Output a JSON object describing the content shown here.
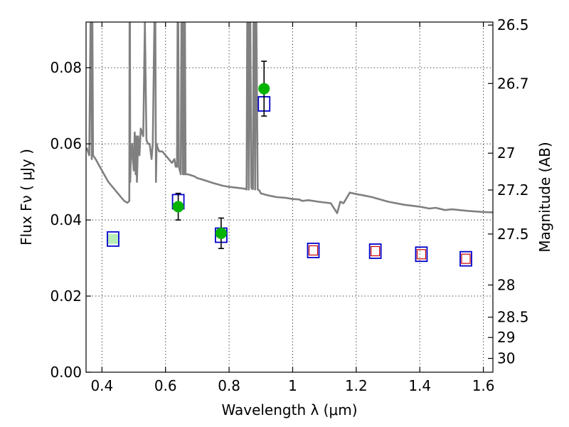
{
  "chart_data": {
    "type": "scatter",
    "title": "",
    "xlabel": "Wavelength  λ (μm)",
    "ylabel": "Flux  Fν  ( μJy )",
    "ylabel_right": "Magnitude (AB)",
    "xlim": [
      0.35,
      1.63
    ],
    "ylim": [
      0.0,
      0.092
    ],
    "grid": true,
    "x_ticks": [
      {
        "value": 0.4,
        "label": "0.4"
      },
      {
        "value": 0.6,
        "label": "0.6"
      },
      {
        "value": 0.8,
        "label": "0.8"
      },
      {
        "value": 1.0,
        "label": "1"
      },
      {
        "value": 1.2,
        "label": "1.2"
      },
      {
        "value": 1.4,
        "label": "1.4"
      },
      {
        "value": 1.6,
        "label": "1.6"
      }
    ],
    "y_ticks": [
      {
        "value": 0.0,
        "label": "0.00"
      },
      {
        "value": 0.02,
        "label": "0.02"
      },
      {
        "value": 0.04,
        "label": "0.04"
      },
      {
        "value": 0.06,
        "label": "0.06"
      },
      {
        "value": 0.08,
        "label": "0.08"
      }
    ],
    "mag_ticks": [
      {
        "value": 26.5,
        "label": "26.5"
      },
      {
        "value": 26.7,
        "label": "26.7"
      },
      {
        "value": 27.0,
        "label": "27"
      },
      {
        "value": 27.2,
        "label": "27.2"
      },
      {
        "value": 27.5,
        "label": "27.5"
      },
      {
        "value": 28.0,
        "label": "28"
      },
      {
        "value": 28.5,
        "label": "28.5"
      },
      {
        "value": 29.0,
        "label": "29"
      },
      {
        "value": 30.0,
        "label": "30"
      }
    ],
    "colors": {
      "sed": "#808080",
      "model_box": "#0000cc",
      "model_fill": "#33cc33",
      "pred_box": "#cc0000",
      "obs": "#00b300",
      "err": "#000000"
    },
    "series": [
      {
        "kind": "line",
        "x": [
          0.352,
          0.36,
          0.364,
          0.366,
          0.368,
          0.369,
          0.37,
          0.372,
          0.38,
          0.4,
          0.42,
          0.45,
          0.47,
          0.48,
          0.486,
          0.487,
          0.488,
          0.489,
          0.49,
          0.495,
          0.5,
          0.503,
          0.506,
          0.508,
          0.51,
          0.514,
          0.518,
          0.522,
          0.526,
          0.53,
          0.535,
          0.54,
          0.545,
          0.55,
          0.556,
          0.56,
          0.565,
          0.568,
          0.57,
          0.572,
          0.575,
          0.58,
          0.59,
          0.6,
          0.61,
          0.62,
          0.628,
          0.632,
          0.636,
          0.638,
          0.64,
          0.642,
          0.645,
          0.648,
          0.65,
          0.652,
          0.655,
          0.657,
          0.659,
          0.661,
          0.663,
          0.665,
          0.67,
          0.69,
          0.7,
          0.72,
          0.75,
          0.78,
          0.8,
          0.82,
          0.84,
          0.85,
          0.855,
          0.857,
          0.86,
          0.862,
          0.865,
          0.867,
          0.87,
          0.872,
          0.875,
          0.877,
          0.88,
          0.882,
          0.884,
          0.886,
          0.89,
          0.895,
          0.9,
          0.92,
          0.95,
          0.98,
          1.0,
          1.02,
          1.03,
          1.05,
          1.08,
          1.1,
          1.12,
          1.14,
          1.15,
          1.16,
          1.18,
          1.2,
          1.22,
          1.25,
          1.3,
          1.35,
          1.4,
          1.43,
          1.45,
          1.48,
          1.5,
          1.55,
          1.6,
          1.63
        ],
        "y": [
          0.059,
          0.057,
          0.092,
          0.092,
          0.056,
          0.092,
          0.092,
          0.057,
          0.056,
          0.053,
          0.05,
          0.047,
          0.045,
          0.0445,
          0.045,
          0.092,
          0.092,
          0.05,
          0.054,
          0.06,
          0.053,
          0.063,
          0.052,
          0.062,
          0.05,
          0.062,
          0.057,
          0.064,
          0.063,
          0.062,
          0.092,
          0.061,
          0.06,
          0.06,
          0.056,
          0.06,
          0.092,
          0.092,
          0.05,
          0.06,
          0.059,
          0.058,
          0.058,
          0.057,
          0.056,
          0.055,
          0.056,
          0.054,
          0.054,
          0.092,
          0.092,
          0.054,
          0.053,
          0.052,
          0.092,
          0.092,
          0.052,
          0.092,
          0.052,
          0.092,
          0.052,
          0.052,
          0.052,
          0.0515,
          0.051,
          0.0505,
          0.0497,
          0.049,
          0.0487,
          0.0485,
          0.0483,
          0.0482,
          0.048,
          0.092,
          0.092,
          0.048,
          0.092,
          0.092,
          0.0485,
          0.0482,
          0.0481,
          0.092,
          0.092,
          0.048,
          0.092,
          0.092,
          0.048,
          0.0478,
          0.047,
          0.0465,
          0.046,
          0.0458,
          0.0455,
          0.0454,
          0.045,
          0.0452,
          0.0448,
          0.0446,
          0.0444,
          0.0418,
          0.0448,
          0.0444,
          0.0472,
          0.0468,
          0.0465,
          0.046,
          0.0448,
          0.044,
          0.0435,
          0.043,
          0.0432,
          0.0426,
          0.0428,
          0.0424,
          0.0421,
          0.042
        ]
      },
      {
        "kind": "model_box",
        "x": [
          0.435,
          0.64,
          0.775,
          0.91,
          1.065,
          1.26,
          1.405,
          1.545
        ],
        "y": [
          0.035,
          0.0448,
          0.036,
          0.0705,
          0.032,
          0.0318,
          0.031,
          0.0298
        ]
      },
      {
        "kind": "pred_box",
        "x": [
          1.065,
          1.26,
          1.405,
          1.545
        ],
        "y": [
          0.032,
          0.0318,
          0.031,
          0.0298
        ]
      },
      {
        "kind": "observed",
        "x": [
          0.64,
          0.775,
          0.91
        ],
        "y": [
          0.0435,
          0.0365,
          0.0745
        ],
        "err": [
          0.0035,
          0.004,
          0.0072
        ]
      }
    ]
  }
}
